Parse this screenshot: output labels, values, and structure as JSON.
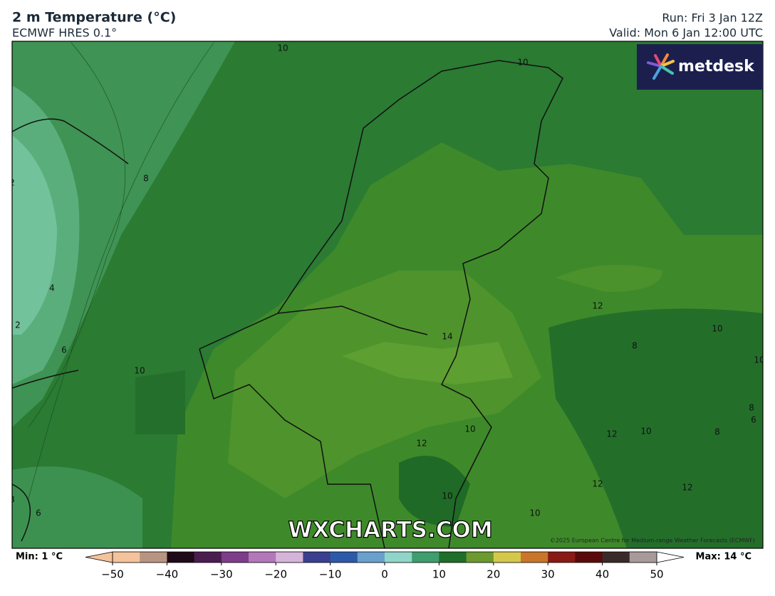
{
  "header": {
    "title": "2 m Temperature (°C)",
    "subtitle": "ECMWF HRES 0.1°",
    "run": "Run: Fri 3 Jan 12Z",
    "valid": "Valid: Mon 6 Jan 12:00 UTC"
  },
  "logo": "metdesk",
  "map": {
    "watermark": "WXCHARTS.COM",
    "copyright": "©2025 European Centre for Medium-range Weather Forecasts (ECMWF)",
    "contour_labels": [
      10,
      10,
      8,
      2,
      4,
      2,
      6,
      10,
      14,
      12,
      10,
      8,
      10,
      10,
      12,
      12,
      10,
      8,
      6,
      8,
      12,
      12,
      10,
      10,
      8,
      6
    ]
  },
  "colorbar": {
    "min_label": "Min: 1 °C",
    "max_label": "Max: 14 °C",
    "range": [
      -50,
      50
    ],
    "colors": [
      "#f4c29b",
      "#b89583",
      "#1e0a18",
      "#4a1d4f",
      "#7d3d8a",
      "#b278b8",
      "#d6b4d9",
      "#3a3f8f",
      "#2d5aa8",
      "#6aa0cc",
      "#8fd6c8",
      "#3e9e6e",
      "#1f6e2a",
      "#6b9a2e",
      "#d4c84a",
      "#c9762a",
      "#8a1a14",
      "#5a0a0a",
      "#3a2a2a",
      "#a89a9a"
    ],
    "ticks": [
      {
        "value": -50,
        "label": "−50"
      },
      {
        "value": -40,
        "label": "−40"
      },
      {
        "value": -30,
        "label": "−30"
      },
      {
        "value": -20,
        "label": "−20"
      },
      {
        "value": -10,
        "label": "−10"
      },
      0,
      10,
      20,
      30,
      40,
      50
    ]
  }
}
